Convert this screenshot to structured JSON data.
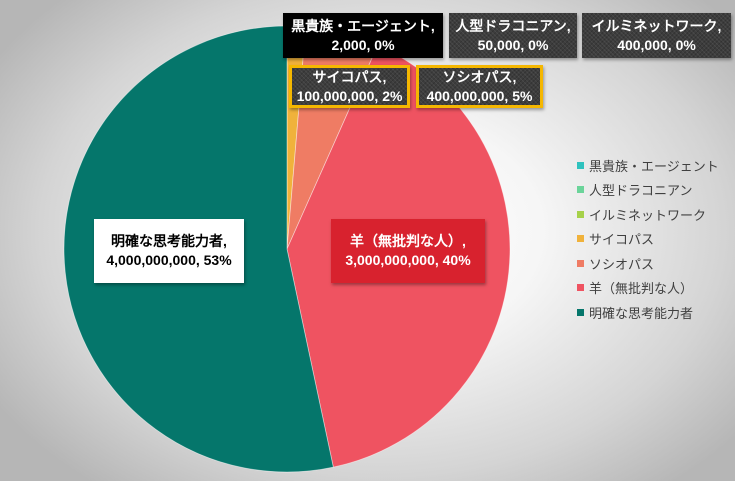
{
  "chart_data": {
    "type": "pie",
    "categories": [
      "黒貴族・エージェント",
      "人型ドラコニアン",
      "イルミネットワーク",
      "サイコパス",
      "ソシオパス",
      "羊（無批判な人）",
      "明確な思考能力者"
    ],
    "values": [
      2000,
      50000,
      400000,
      100000000,
      400000000,
      3000000000,
      4000000000
    ],
    "data_labels": [
      [
        "黒貴族・エージェント,",
        "2,000, 0%"
      ],
      [
        "人型ドラコニアン,",
        "50,000, 0%"
      ],
      [
        "イルミネットワーク,",
        "400,000, 0%"
      ],
      [
        "サイコパス,",
        "100,000,000, 2%"
      ],
      [
        "ソシオパス,",
        "400,000,000, 5%"
      ],
      [
        "羊（無批判な人）,",
        "3,000,000,000, 40%"
      ],
      [
        "明確な思考能力者,",
        "4,000,000,000, 53%"
      ]
    ],
    "colors": [
      "#2FC2BE",
      "#6BD49A",
      "#A6D14A",
      "#F0B23B",
      "#EF7C64",
      "#EF5361",
      "#05766B"
    ],
    "legend_position": "right"
  }
}
